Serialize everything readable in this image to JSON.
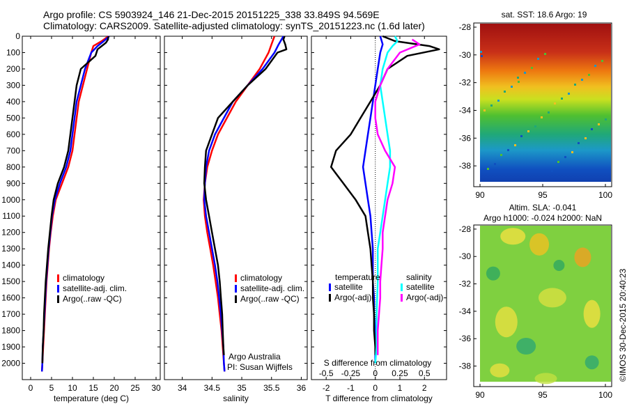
{
  "header": {
    "line1": "Argo profile: CS 5903924_146 21-Dec-2015 20151225_338 33.849S 94.569E",
    "line2": "Climatology: CARS2009. Satellite-adjusted climatology: synTS_20151223.nc (1.6d later)"
  },
  "stamp": "©IMOS 30-Dec-2015 20:40:23",
  "colors": {
    "climatology": "#ff0000",
    "satellite": "#0000ff",
    "argo": "#000000",
    "sat_salinity": "#00ffff",
    "argo_salinity": "#ff00ff"
  },
  "chart_data": [
    {
      "id": "temperature",
      "type": "line",
      "xlabel": "temperature (deg C)",
      "xlim": [
        -2,
        31
      ],
      "xticks": [
        0,
        5,
        10,
        15,
        20,
        25,
        30
      ],
      "ylim": [
        2100,
        0
      ],
      "yticks": [
        0,
        100,
        200,
        300,
        400,
        500,
        600,
        700,
        800,
        900,
        1000,
        1100,
        1200,
        1300,
        1400,
        1500,
        1600,
        1700,
        1800,
        1900,
        2000
      ],
      "legend": [
        "climatology",
        "satellite-adj. clim.",
        "Argo(..raw -QC)"
      ],
      "series": [
        {
          "name": "climatology",
          "color": "#ff0000",
          "points": [
            [
              18.6,
              0
            ],
            [
              17,
              30
            ],
            [
              15,
              60
            ],
            [
              14.5,
              100
            ],
            [
              13.5,
              200
            ],
            [
              12.5,
              300
            ],
            [
              11.5,
              400
            ],
            [
              11,
              500
            ],
            [
              10.5,
              600
            ],
            [
              10,
              700
            ],
            [
              9,
              800
            ],
            [
              7.5,
              900
            ],
            [
              6,
              1000
            ],
            [
              5.3,
              1100
            ],
            [
              4.8,
              1200
            ],
            [
              4.4,
              1300
            ],
            [
              4.1,
              1400
            ],
            [
              3.8,
              1500
            ],
            [
              3.6,
              1600
            ],
            [
              3.4,
              1700
            ],
            [
              3.2,
              1800
            ],
            [
              3,
              1900
            ],
            [
              2.8,
              2000
            ],
            [
              2.7,
              2050
            ]
          ]
        },
        {
          "name": "satellite-adj. clim.",
          "color": "#0000ff",
          "points": [
            [
              18.8,
              0
            ],
            [
              17.5,
              30
            ],
            [
              16,
              60
            ],
            [
              14.5,
              100
            ],
            [
              13,
              200
            ],
            [
              12,
              300
            ],
            [
              11,
              400
            ],
            [
              10.5,
              500
            ],
            [
              10,
              600
            ],
            [
              9.5,
              700
            ],
            [
              8.5,
              800
            ],
            [
              7,
              900
            ],
            [
              5.8,
              1000
            ],
            [
              5.1,
              1100
            ],
            [
              4.7,
              1200
            ],
            [
              4.3,
              1300
            ],
            [
              4,
              1400
            ],
            [
              3.7,
              1500
            ],
            [
              3.5,
              1600
            ],
            [
              3.3,
              1700
            ],
            [
              3.1,
              1800
            ],
            [
              2.9,
              1900
            ],
            [
              2.8,
              2000
            ],
            [
              2.7,
              2050
            ]
          ]
        },
        {
          "name": "Argo(..raw -QC)",
          "color": "#000000",
          "points": [
            [
              18.6,
              0
            ],
            [
              18.5,
              20
            ],
            [
              18,
              40
            ],
            [
              17,
              60
            ],
            [
              16,
              80
            ],
            [
              15.5,
              120
            ],
            [
              12,
              200
            ],
            [
              11,
              300
            ],
            [
              10.5,
              400
            ],
            [
              10,
              500
            ],
            [
              9.5,
              600
            ],
            [
              9,
              700
            ],
            [
              8,
              800
            ],
            [
              6.5,
              900
            ],
            [
              5.5,
              1000
            ],
            [
              5,
              1100
            ],
            [
              4.6,
              1200
            ],
            [
              4.2,
              1300
            ],
            [
              3.9,
              1400
            ],
            [
              3.6,
              1500
            ],
            [
              3.4,
              1600
            ],
            [
              3.2,
              1700
            ],
            [
              3.1,
              1800
            ],
            [
              2.9,
              1900
            ],
            [
              2.8,
              2000
            ]
          ]
        }
      ]
    },
    {
      "id": "salinity",
      "type": "line",
      "xlabel": "salinity",
      "xlim": [
        33.7,
        36.1
      ],
      "xticks": [
        34,
        34.5,
        35,
        35.5,
        36
      ],
      "ylim": [
        2100,
        0
      ],
      "legend": [
        "climatology",
        "satellite-adj. clim.",
        "Argo(..raw -QC)"
      ],
      "credit": [
        "Argo Australia",
        "PI: Susan Wijffels"
      ],
      "series": [
        {
          "name": "climatology",
          "color": "#ff0000",
          "points": [
            [
              35.55,
              0
            ],
            [
              35.5,
              50
            ],
            [
              35.45,
              100
            ],
            [
              35.3,
              200
            ],
            [
              35.1,
              300
            ],
            [
              34.9,
              400
            ],
            [
              34.75,
              500
            ],
            [
              34.6,
              600
            ],
            [
              34.5,
              700
            ],
            [
              34.42,
              800
            ],
            [
              34.38,
              900
            ],
            [
              34.36,
              1000
            ],
            [
              34.38,
              1100
            ],
            [
              34.42,
              1200
            ],
            [
              34.47,
              1300
            ],
            [
              34.52,
              1400
            ],
            [
              34.56,
              1500
            ],
            [
              34.6,
              1600
            ],
            [
              34.63,
              1700
            ],
            [
              34.66,
              1800
            ],
            [
              34.68,
              1900
            ],
            [
              34.7,
              2000
            ],
            [
              34.71,
              2050
            ]
          ]
        },
        {
          "name": "satellite-adj. clim.",
          "color": "#0000ff",
          "points": [
            [
              35.7,
              0
            ],
            [
              35.62,
              50
            ],
            [
              35.55,
              100
            ],
            [
              35.35,
              200
            ],
            [
              35.1,
              300
            ],
            [
              34.85,
              400
            ],
            [
              34.7,
              500
            ],
            [
              34.55,
              600
            ],
            [
              34.45,
              700
            ],
            [
              34.4,
              800
            ],
            [
              34.38,
              900
            ],
            [
              34.37,
              1000
            ],
            [
              34.4,
              1100
            ],
            [
              34.45,
              1200
            ],
            [
              34.5,
              1300
            ],
            [
              34.55,
              1400
            ],
            [
              34.59,
              1500
            ],
            [
              34.62,
              1600
            ],
            [
              34.65,
              1700
            ],
            [
              34.67,
              1800
            ],
            [
              34.69,
              1900
            ],
            [
              34.7,
              2000
            ],
            [
              34.71,
              2050
            ]
          ]
        },
        {
          "name": "Argo(..raw -QC)",
          "color": "#000000",
          "points": [
            [
              35.72,
              0
            ],
            [
              35.7,
              20
            ],
            [
              35.73,
              50
            ],
            [
              35.75,
              80
            ],
            [
              35.6,
              100
            ],
            [
              35.4,
              200
            ],
            [
              35.1,
              300
            ],
            [
              34.85,
              400
            ],
            [
              34.6,
              500
            ],
            [
              34.5,
              600
            ],
            [
              34.4,
              700
            ],
            [
              34.38,
              800
            ],
            [
              34.37,
              900
            ],
            [
              34.4,
              1000
            ],
            [
              34.45,
              1100
            ],
            [
              34.5,
              1200
            ],
            [
              34.55,
              1300
            ],
            [
              34.6,
              1400
            ],
            [
              34.63,
              1500
            ],
            [
              34.65,
              1600
            ],
            [
              34.67,
              1700
            ],
            [
              34.68,
              1800
            ],
            [
              34.69,
              1900
            ],
            [
              34.7,
              1950
            ]
          ]
        }
      ]
    },
    {
      "id": "difference",
      "type": "line",
      "xlabel": "T difference from climatology",
      "xlabel_top": "S difference from climatology",
      "xlim": [
        -2.6,
        2.9
      ],
      "xticks": [
        -2,
        -1,
        0,
        1,
        2
      ],
      "xticklabels_s": [
        "-0.5",
        "-0.25",
        "0",
        "0.25",
        "0.5"
      ],
      "xticks_s_pos": [
        -2,
        -1,
        0,
        1,
        2
      ],
      "ylim": [
        2100,
        0
      ],
      "legend_left_title": "temperature",
      "legend_right_title": "salinity",
      "legend_left": [
        "satellite",
        "Argo(-adj)"
      ],
      "legend_right": [
        "satellite",
        "Argo(-adj)"
      ],
      "series": [
        {
          "name": "temperature satellite",
          "color": "#0000ff",
          "points": [
            [
              0.2,
              0
            ],
            [
              0.3,
              50
            ],
            [
              0.2,
              100
            ],
            [
              0.1,
              200
            ],
            [
              0,
              300
            ],
            [
              -0.1,
              400
            ],
            [
              -0.2,
              500
            ],
            [
              -0.3,
              600
            ],
            [
              -0.4,
              700
            ],
            [
              -0.5,
              800
            ],
            [
              -0.4,
              900
            ],
            [
              -0.3,
              1000
            ],
            [
              -0.2,
              1100
            ],
            [
              -0.15,
              1200
            ],
            [
              -0.1,
              1300
            ],
            [
              -0.1,
              1400
            ],
            [
              -0.1,
              1500
            ],
            [
              -0.05,
              1600
            ],
            [
              -0.05,
              1700
            ],
            [
              0,
              1800
            ],
            [
              0,
              1900
            ],
            [
              0,
              2000
            ]
          ]
        },
        {
          "name": "temperature Argo(-adj)",
          "color": "#000000",
          "points": [
            [
              0.3,
              0
            ],
            [
              0.8,
              30
            ],
            [
              2.2,
              60
            ],
            [
              2.6,
              80
            ],
            [
              1.3,
              120
            ],
            [
              0.5,
              200
            ],
            [
              0.2,
              300
            ],
            [
              -0.2,
              400
            ],
            [
              -0.6,
              500
            ],
            [
              -1.0,
              600
            ],
            [
              -1.6,
              700
            ],
            [
              -1.8,
              800
            ],
            [
              -1.3,
              900
            ],
            [
              -0.8,
              1000
            ],
            [
              -0.4,
              1100
            ],
            [
              -0.3,
              1200
            ],
            [
              -0.2,
              1300
            ],
            [
              -0.15,
              1400
            ],
            [
              -0.1,
              1500
            ],
            [
              -0.1,
              1600
            ],
            [
              -0.05,
              1700
            ],
            [
              -0.05,
              1800
            ],
            [
              0,
              1900
            ],
            [
              0,
              1950
            ]
          ]
        },
        {
          "name": "salinity satellite",
          "color": "#00ffff",
          "points": [
            [
              0.8,
              0
            ],
            [
              0.9,
              30
            ],
            [
              0.7,
              60
            ],
            [
              0.5,
              100
            ],
            [
              0.3,
              200
            ],
            [
              0.2,
              300
            ],
            [
              0.3,
              400
            ],
            [
              0.4,
              500
            ],
            [
              0.5,
              600
            ],
            [
              0.6,
              700
            ],
            [
              0.6,
              800
            ],
            [
              0.5,
              900
            ],
            [
              0.4,
              1000
            ],
            [
              0.3,
              1100
            ],
            [
              0.2,
              1200
            ],
            [
              0.1,
              1300
            ],
            [
              0.1,
              1500
            ],
            [
              0.05,
              1700
            ],
            [
              0.05,
              1900
            ],
            [
              0,
              2000
            ]
          ]
        },
        {
          "name": "salinity Argo(-adj)",
          "color": "#ff00ff",
          "points": [
            [
              1.5,
              20
            ],
            [
              1.8,
              50
            ],
            [
              1.0,
              100
            ],
            [
              0.5,
              200
            ],
            [
              0.2,
              300
            ],
            [
              0,
              400
            ],
            [
              0,
              500
            ],
            [
              0.1,
              600
            ],
            [
              0.4,
              700
            ],
            [
              0.8,
              800
            ],
            [
              0.7,
              900
            ],
            [
              0.5,
              1000
            ],
            [
              0.4,
              1100
            ],
            [
              0.3,
              1200
            ],
            [
              0.3,
              1300
            ],
            [
              0.25,
              1400
            ],
            [
              0.2,
              1500
            ],
            [
              0.2,
              1600
            ],
            [
              0.15,
              1700
            ],
            [
              0.1,
              1800
            ],
            [
              0.1,
              1900
            ],
            [
              0.1,
              1950
            ]
          ]
        }
      ]
    },
    {
      "id": "sst-map",
      "type": "heatmap",
      "title": "sat. SST: 18.6 Argo: 19",
      "xlim": [
        89.5,
        100.5
      ],
      "ylim": [
        -39.5,
        -27.7
      ],
      "xticks": [
        90,
        95,
        100
      ],
      "yticks": [
        -28,
        -30,
        -32,
        -34,
        -36,
        -38
      ]
    },
    {
      "id": "sla-map",
      "type": "heatmap",
      "title_lines": [
        "Altim. SLA: -0.041",
        "Argo h1000: -0.024 h2000: NaN"
      ],
      "xlim": [
        89.5,
        100.5
      ],
      "ylim": [
        -39.5,
        -27.7
      ],
      "xticks": [
        90,
        95,
        100
      ],
      "yticks": [
        -28,
        -30,
        -32,
        -34,
        -36,
        -38
      ]
    }
  ]
}
